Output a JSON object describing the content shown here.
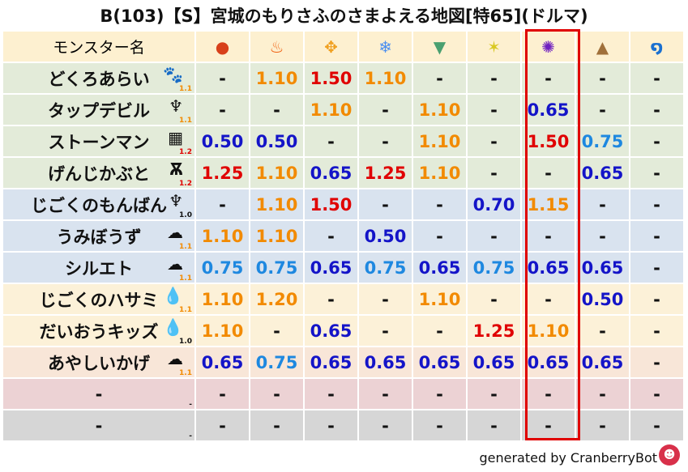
{
  "title": "B(103)【S】宮城のもりさふのさまよえる地図[特65](ドルマ)",
  "header": {
    "name_label": "モンスター名",
    "elements": [
      {
        "icon": "fire-ball-icon",
        "glyph": "●",
        "color": "#d8401a"
      },
      {
        "icon": "flame-icon",
        "glyph": "♨",
        "color": "#f06010"
      },
      {
        "icon": "explosion-icon",
        "glyph": "✥",
        "color": "#f0a020"
      },
      {
        "icon": "ice-icon",
        "glyph": "❄",
        "color": "#4a8ef0"
      },
      {
        "icon": "tornado-icon",
        "glyph": "▼",
        "color": "#4aa070"
      },
      {
        "icon": "light-icon",
        "glyph": "✶",
        "color": "#d8c820"
      },
      {
        "icon": "dark-icon",
        "glyph": "✺",
        "color": "#7020c0"
      },
      {
        "icon": "earth-icon",
        "glyph": "▲",
        "color": "#a0703a"
      },
      {
        "icon": "water-icon",
        "glyph": "໑",
        "color": "#1a70d0"
      }
    ],
    "highlight_column": 6
  },
  "colors": {
    "low": "#1414c8",
    "mid": "#1e88e0",
    "high": "#f28a00",
    "very_high": "#e00000",
    "highlight_border": "#e00000"
  },
  "rows": [
    {
      "name": "どくろあらい",
      "icon": "paw-icon",
      "glyph": "🐾",
      "lv": "1.1",
      "lv_color": "#f28a00",
      "bg": "#e3ebd9",
      "values": [
        "-",
        "1.10",
        "1.50",
        "1.10",
        "-",
        "-",
        "-",
        "-",
        "-"
      ]
    },
    {
      "name": "タップデビル",
      "icon": "devil-icon",
      "glyph": "♆",
      "lv": "1.1",
      "lv_color": "#f28a00",
      "bg": "#e3ebd9",
      "values": [
        "-",
        "-",
        "1.10",
        "-",
        "1.10",
        "-",
        "0.65",
        "-",
        "-"
      ]
    },
    {
      "name": "ストーンマン",
      "icon": "brick-icon",
      "glyph": "▦",
      "lv": "1.2",
      "lv_color": "#e00000",
      "bg": "#e3ebd9",
      "values": [
        "0.50",
        "0.50",
        "-",
        "-",
        "1.10",
        "-",
        "1.50",
        "0.75",
        "-"
      ]
    },
    {
      "name": "げんじかぶと",
      "icon": "insect-icon",
      "glyph": "Ѫ",
      "lv": "1.2",
      "lv_color": "#e00000",
      "bg": "#e3ebd9",
      "values": [
        "1.25",
        "1.10",
        "0.65",
        "1.25",
        "1.10",
        "-",
        "-",
        "0.65",
        "-"
      ]
    },
    {
      "name": "じごくのもんばん",
      "icon": "devil-icon",
      "glyph": "♆",
      "lv": "1.0",
      "lv_color": "#111111",
      "bg": "#d9e3ef",
      "values": [
        "-",
        "1.10",
        "1.50",
        "-",
        "-",
        "0.70",
        "1.15",
        "-",
        "-"
      ]
    },
    {
      "name": "うみぼうず",
      "icon": "ghost-icon",
      "glyph": "☁",
      "lv": "1.1",
      "lv_color": "#f28a00",
      "bg": "#d9e3ef",
      "values": [
        "1.10",
        "1.10",
        "-",
        "0.50",
        "-",
        "-",
        "-",
        "-",
        "-"
      ]
    },
    {
      "name": "シルエト",
      "icon": "ghost-icon",
      "glyph": "☁",
      "lv": "1.1",
      "lv_color": "#f28a00",
      "bg": "#d9e3ef",
      "values": [
        "0.75",
        "0.75",
        "0.65",
        "0.75",
        "0.65",
        "0.75",
        "0.65",
        "0.65",
        "-"
      ]
    },
    {
      "name": "じごくのハサミ",
      "icon": "drop-icon",
      "glyph": "💧",
      "lv": "1.1",
      "lv_color": "#f28a00",
      "bg": "#fcf1d8",
      "values": [
        "1.10",
        "1.20",
        "-",
        "-",
        "1.10",
        "-",
        "-",
        "0.50",
        "-"
      ]
    },
    {
      "name": "だいおうキッズ",
      "icon": "drop-icon",
      "glyph": "💧",
      "lv": "1.0",
      "lv_color": "#111111",
      "bg": "#fcf1d8",
      "values": [
        "1.10",
        "-",
        "0.65",
        "-",
        "-",
        "1.25",
        "1.10",
        "-",
        "-"
      ]
    },
    {
      "name": "あやしいかげ",
      "icon": "ghost-icon",
      "glyph": "☁",
      "lv": "1.1",
      "lv_color": "#f28a00",
      "bg": "#f8e6d8",
      "values": [
        "0.65",
        "0.75",
        "0.65",
        "0.65",
        "0.65",
        "0.65",
        "0.65",
        "0.65",
        "-"
      ]
    },
    {
      "name": "-",
      "icon": "",
      "glyph": "",
      "lv": "-",
      "lv_color": "#111111",
      "bg": "#ecd2d4",
      "values": [
        "-",
        "-",
        "-",
        "-",
        "-",
        "-",
        "-",
        "-",
        "-"
      ]
    },
    {
      "name": "-",
      "icon": "",
      "glyph": "",
      "lv": "-",
      "lv_color": "#111111",
      "bg": "#d6d6d6",
      "values": [
        "-",
        "-",
        "-",
        "-",
        "-",
        "-",
        "-",
        "-",
        "-"
      ]
    }
  ],
  "footer": {
    "text": "generated by CranberryBot",
    "logo_icon": "cranberry-icon"
  }
}
